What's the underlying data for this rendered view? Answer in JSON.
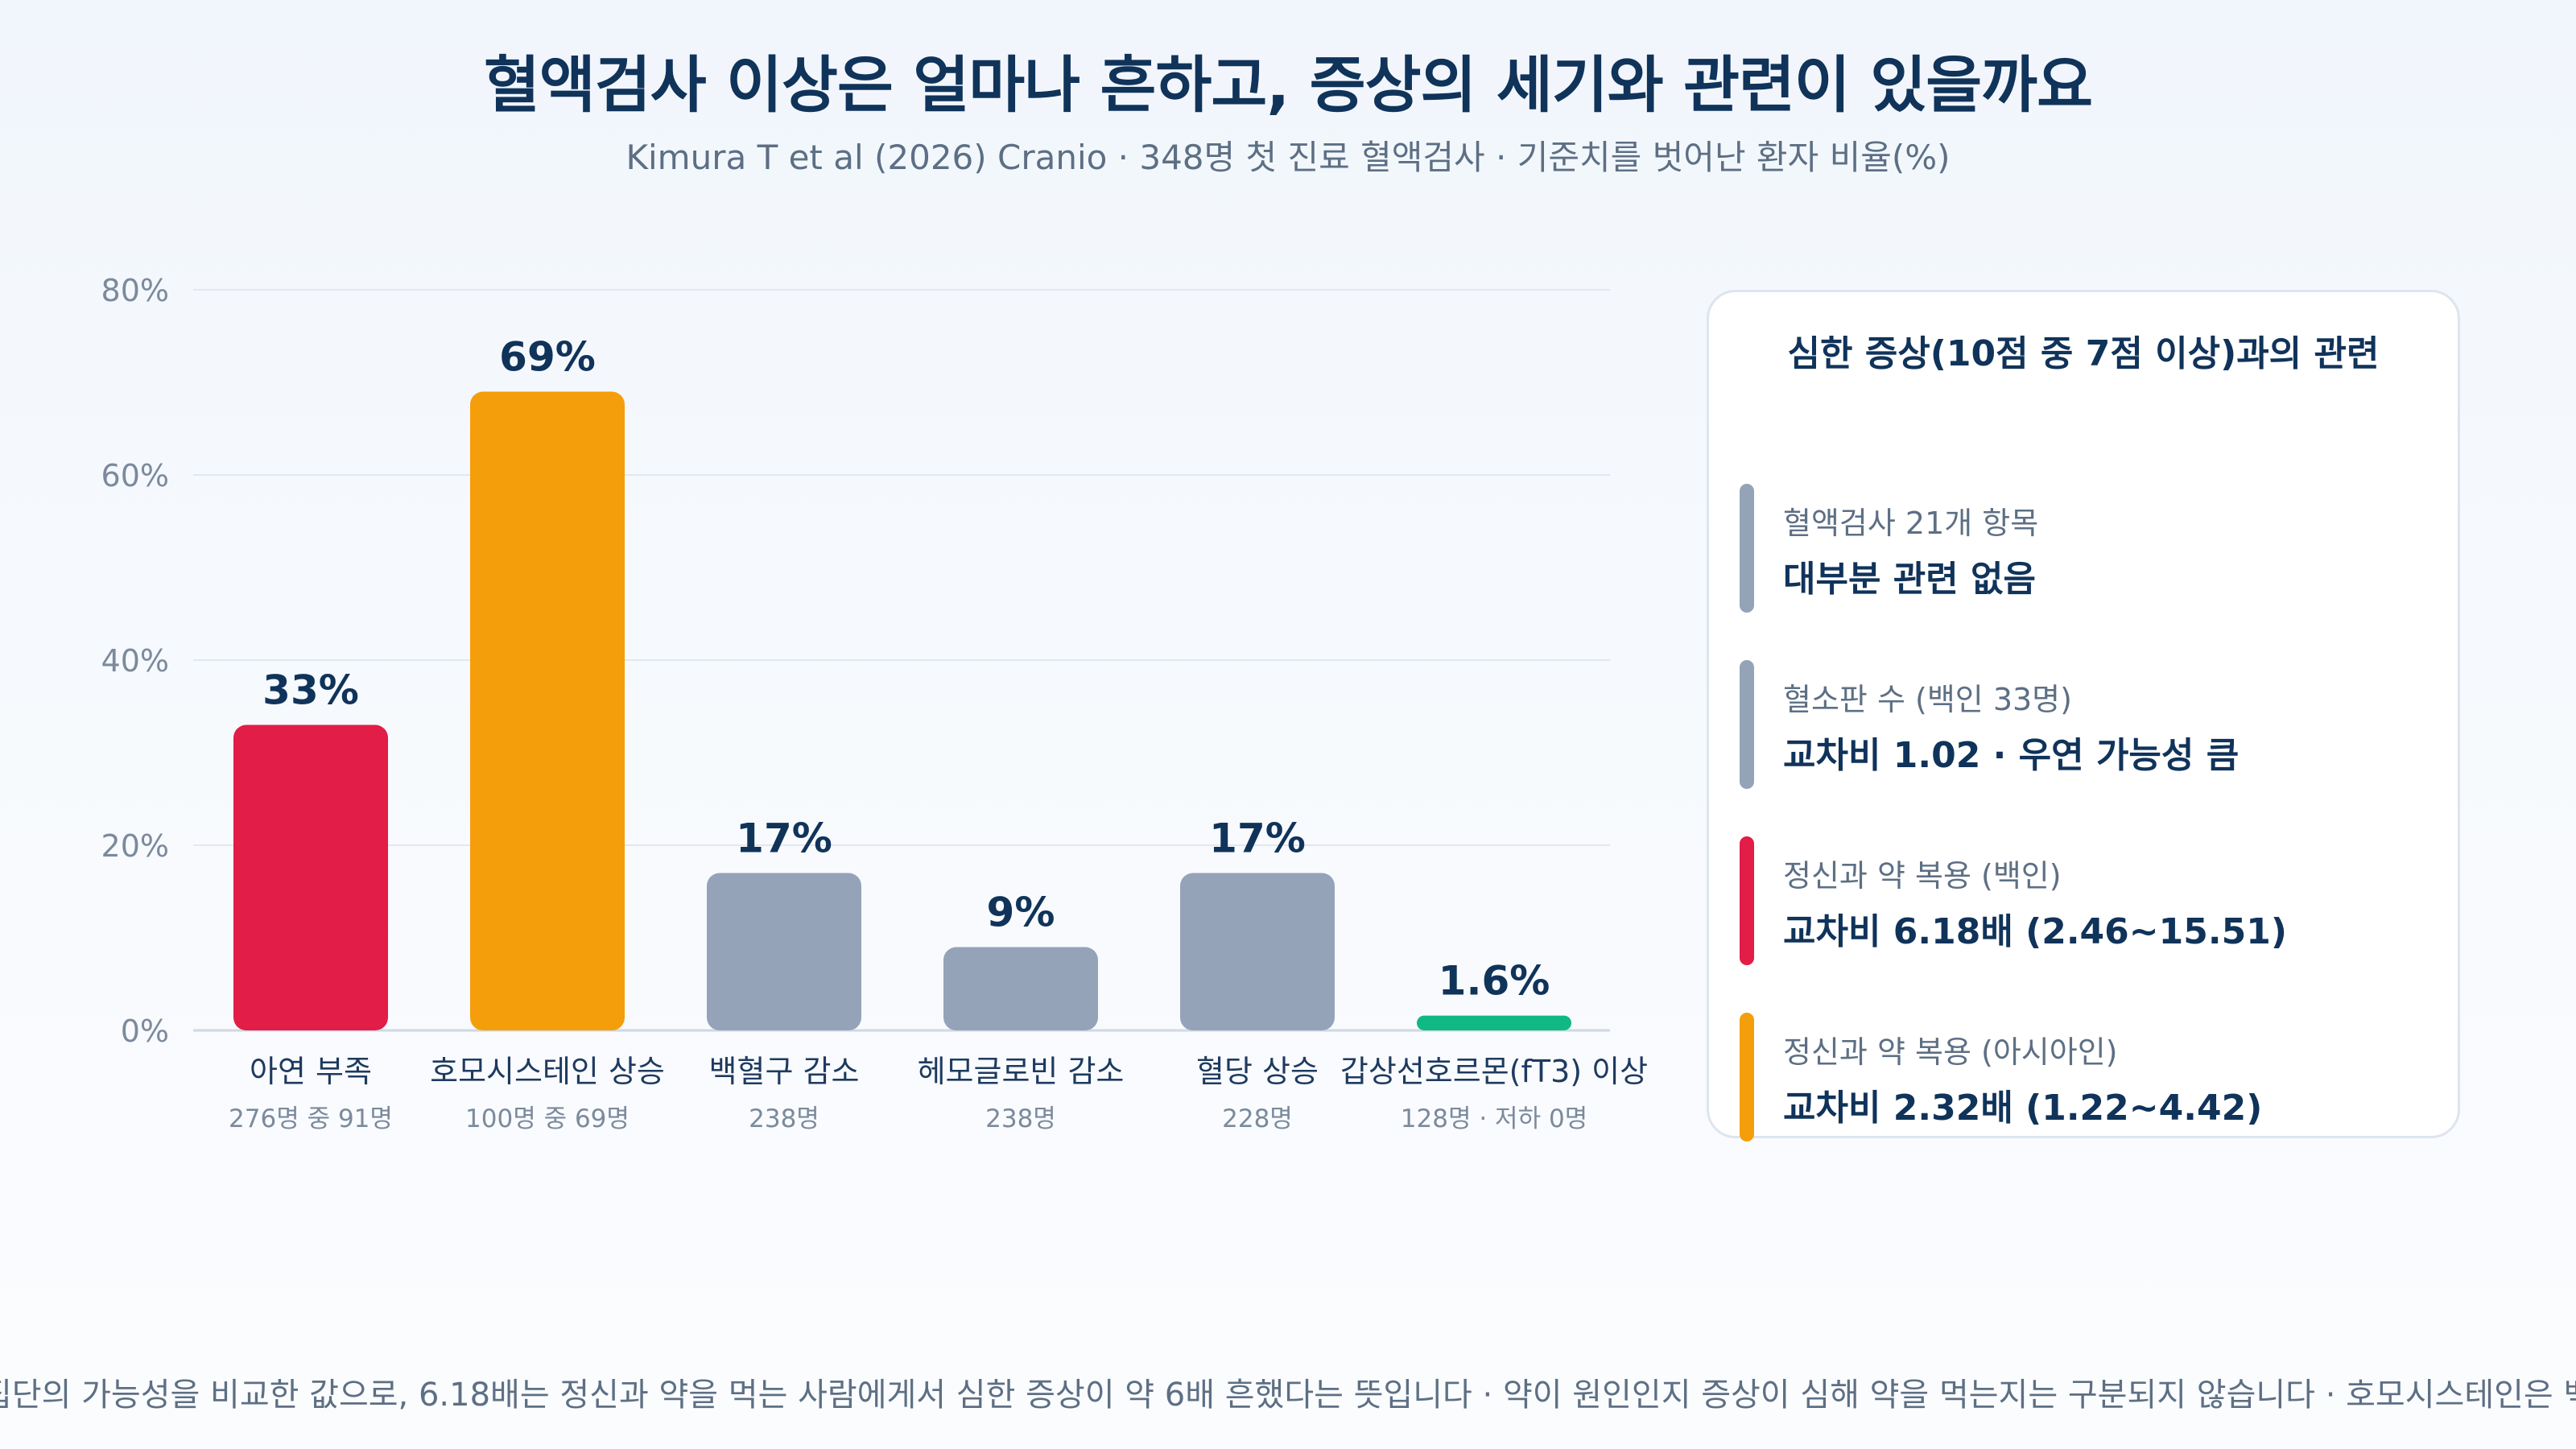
{
  "title": "혈액검사 이상은 얼마나 흔하고, 증상의 세기와 관련이 있을까요",
  "subtitle": "Kimura T et al (2026) Cranio · 348명 첫 진료 혈액검사 · 기준치를 벗어난 환자 비율(%)",
  "chart_data": {
    "type": "bar",
    "title": "혈액검사 이상은 얼마나 흔하고, 증상의 세기와 관련이 있을까요",
    "subtitle": "Kimura T et al (2026) Cranio · 348명 첫 진료 혈액검사 · 기준치를 벗어난 환자 비율(%)",
    "categories": [
      "아연 부족",
      "호모시스테인 상승",
      "백혈구 감소",
      "헤모글로빈 감소",
      "혈당 상승",
      "갑상선호르몬(fT3) 이상"
    ],
    "sublabels": [
      "276명 중 91명",
      "100명 중 69명",
      "238명",
      "238명",
      "228명",
      "128명 · 저하 0명"
    ],
    "values": [
      33,
      69,
      17,
      9,
      17,
      1.6
    ],
    "value_labels": [
      "33%",
      "69%",
      "17%",
      "9%",
      "17%",
      "1.6%"
    ],
    "colors": [
      "#e11d48",
      "#f59e0b",
      "#94a3b8",
      "#94a3b8",
      "#94a3b8",
      "#10b981"
    ],
    "ylim": [
      0,
      80
    ],
    "yticks": [
      0,
      20,
      40,
      60,
      80
    ],
    "ytick_labels": [
      "0%",
      "20%",
      "40%",
      "60%",
      "80%"
    ],
    "grid": true,
    "xlabel": "",
    "ylabel": ""
  },
  "panel": {
    "title": "심한 증상(10점 중 7점 이상)과의 관련",
    "items": [
      {
        "label": "혈액검사 21개 항목",
        "value": "대부분 관련 없음",
        "color": "#94a3b8"
      },
      {
        "label": "혈소판 수 (백인 33명)",
        "value": "교차비 1.02 · 우연 가능성 큼",
        "color": "#94a3b8"
      },
      {
        "label": "정신과 약 복용 (백인)",
        "value": "교차비 6.18배 (2.46~15.51)",
        "color": "#e11d48"
      },
      {
        "label": "정신과 약 복용 (아시아인)",
        "value": "교차비 2.32배 (1.22~4.42)",
        "color": "#f59e0b"
      }
    ]
  },
  "footnote": "집단의 가능성을 비교한 값으로, 6.18배는 정신과 약을 먹는 사람에게서 심한 증상이 약 6배 흔했다는 뜻입니다 · 약이 원인인지 증상이 심해 약을 먹는지는 구분되지 않습니다 · 호모시스테인은 백인 ·"
}
